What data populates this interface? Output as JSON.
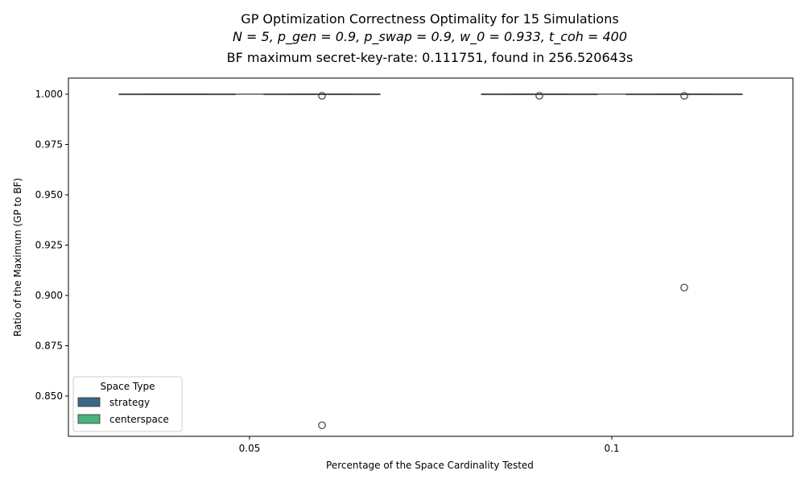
{
  "chart_data": {
    "type": "box",
    "title": "GP Optimization Correctness Optimality for 15 Simulations",
    "subtitle": "N = 5, p_gen = 0.9, p_swap = 0.9, w_0 = 0.933, t_coh = 400",
    "subtitle2": "BF maximum secret-key-rate: 0.111751, found in 256.520643s",
    "xlabel": "Percentage of the Space Cardinality Tested",
    "ylabel": "Ratio of the Maximum (GP to BF)",
    "categories": [
      "0.05",
      "0.1"
    ],
    "ylim": [
      0.83,
      1.008
    ],
    "yticks": [
      "0.850",
      "0.875",
      "0.900",
      "0.925",
      "0.950",
      "0.975",
      "1.000"
    ],
    "grid": false,
    "legend": {
      "title": "Space Type",
      "placement": "lower-left",
      "entries": [
        {
          "label": "strategy",
          "color": "#3b6687"
        },
        {
          "label": "centerspace",
          "color": "#48b47a"
        }
      ]
    },
    "series": [
      {
        "name": "strategy",
        "color": "#3b6687",
        "boxes": [
          {
            "q1": 1.0,
            "median": 1.0,
            "q3": 1.0,
            "whisker_low": 1.0,
            "whisker_high": 1.0,
            "outliers": []
          },
          {
            "q1": 1.0,
            "median": 1.0,
            "q3": 1.0,
            "whisker_low": 1.0,
            "whisker_high": 1.0,
            "outliers": [
              0.9992
            ]
          }
        ]
      },
      {
        "name": "centerspace",
        "color": "#48b47a",
        "boxes": [
          {
            "q1": 1.0,
            "median": 1.0,
            "q3": 1.0,
            "whisker_low": 1.0,
            "whisker_high": 1.0,
            "outliers": [
              0.9992,
              0.8355
            ]
          },
          {
            "q1": 1.0,
            "median": 1.0,
            "q3": 1.0,
            "whisker_low": 1.0,
            "whisker_high": 1.0,
            "outliers": [
              0.9992,
              0.9039
            ]
          }
        ]
      }
    ]
  }
}
